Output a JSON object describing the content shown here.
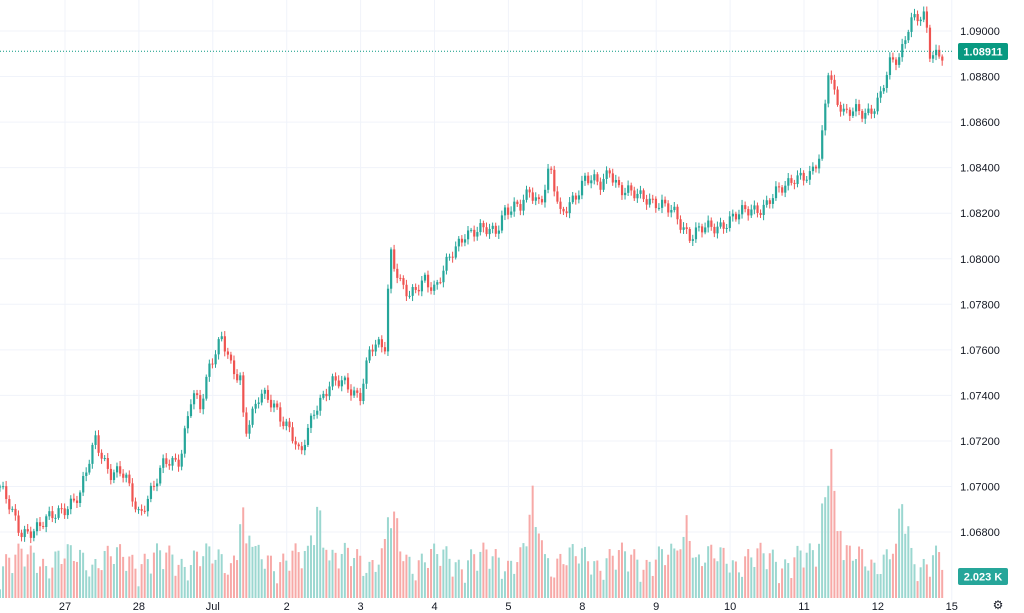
{
  "chart_data": {
    "type": "candlestick",
    "title": "",
    "timeframe_note": "hourly candles",
    "ylim": [
      1.0665,
      1.0915
    ],
    "y_ticks": [
      "1.09000",
      "1.08800",
      "1.08600",
      "1.08400",
      "1.08200",
      "1.08000",
      "1.07800",
      "1.07600",
      "1.07400",
      "1.07200",
      "1.07000",
      "1.06800"
    ],
    "x_ticks": [
      {
        "label": "27",
        "t": 0
      },
      {
        "label": "28",
        "t": 1
      },
      {
        "label": "Jul",
        "t": 2
      },
      {
        "label": "2",
        "t": 3
      },
      {
        "label": "3",
        "t": 4
      },
      {
        "label": "4",
        "t": 5
      },
      {
        "label": "5",
        "t": 6
      },
      {
        "label": "8",
        "t": 7
      },
      {
        "label": "9",
        "t": 8
      },
      {
        "label": "10",
        "t": 9
      },
      {
        "label": "11",
        "t": 10
      },
      {
        "label": "12",
        "t": 11
      },
      {
        "label": "15",
        "t": 12
      }
    ],
    "close_path": [
      [
        -0.88,
        1.07
      ],
      [
        -0.61,
        1.068
      ],
      [
        -0.34,
        1.0682
      ],
      [
        -0.07,
        1.069
      ],
      [
        0.2,
        1.0695
      ],
      [
        0.41,
        1.0722
      ],
      [
        0.61,
        1.0705
      ],
      [
        0.81,
        1.0705
      ],
      [
        1.01,
        1.0688
      ],
      [
        1.22,
        1.07
      ],
      [
        1.35,
        1.0712
      ],
      [
        1.56,
        1.0712
      ],
      [
        1.72,
        1.074
      ],
      [
        1.83,
        1.0735
      ],
      [
        1.96,
        1.0755
      ],
      [
        2.12,
        1.0765
      ],
      [
        2.26,
        1.075
      ],
      [
        2.37,
        1.0748
      ],
      [
        2.43,
        1.0725
      ],
      [
        2.64,
        1.074
      ],
      [
        2.84,
        1.0735
      ],
      [
        3.05,
        1.0725
      ],
      [
        3.18,
        1.0712
      ],
      [
        3.38,
        1.0735
      ],
      [
        3.59,
        1.0745
      ],
      [
        3.79,
        1.0745
      ],
      [
        3.99,
        1.074
      ],
      [
        4.13,
        1.076
      ],
      [
        4.33,
        1.0762
      ],
      [
        4.4,
        1.0805
      ],
      [
        4.53,
        1.079
      ],
      [
        4.67,
        1.0782
      ],
      [
        4.87,
        1.0792
      ],
      [
        5.01,
        1.0787
      ],
      [
        5.21,
        1.08
      ],
      [
        5.41,
        1.0812
      ],
      [
        5.62,
        1.0812
      ],
      [
        5.82,
        1.0812
      ],
      [
        5.95,
        1.0822
      ],
      [
        6.16,
        1.0822
      ],
      [
        6.29,
        1.083
      ],
      [
        6.43,
        1.0825
      ],
      [
        6.56,
        1.084
      ],
      [
        6.7,
        1.0818
      ],
      [
        6.83,
        1.0825
      ],
      [
        7.04,
        1.0835
      ],
      [
        7.24,
        1.0832
      ],
      [
        7.37,
        1.084
      ],
      [
        7.51,
        1.083
      ],
      [
        7.65,
        1.0828
      ],
      [
        7.85,
        1.0828
      ],
      [
        8.05,
        1.0823
      ],
      [
        8.25,
        1.082
      ],
      [
        8.46,
        1.081
      ],
      [
        8.66,
        1.0813
      ],
      [
        8.86,
        1.0815
      ],
      [
        9.07,
        1.0818
      ],
      [
        9.27,
        1.0822
      ],
      [
        9.47,
        1.0823
      ],
      [
        9.68,
        1.083
      ],
      [
        9.88,
        1.0837
      ],
      [
        10.08,
        1.0835
      ],
      [
        10.22,
        1.0845
      ],
      [
        10.33,
        1.0885
      ],
      [
        10.42,
        1.0872
      ],
      [
        10.55,
        1.0862
      ],
      [
        10.69,
        1.0865
      ],
      [
        10.89,
        1.0865
      ],
      [
        11.03,
        1.087
      ],
      [
        11.16,
        1.0885
      ],
      [
        11.3,
        1.089
      ],
      [
        11.43,
        1.0905
      ],
      [
        11.64,
        1.0905
      ],
      [
        11.7,
        1.089
      ],
      [
        11.91,
        1.0891
      ]
    ],
    "volume_peaks_k": [
      [
        2.42,
        9.0
      ],
      [
        3.42,
        9.5
      ],
      [
        4.43,
        10.0
      ],
      [
        6.33,
        10.5
      ],
      [
        8.4,
        8.0
      ],
      [
        10.35,
        15.0
      ],
      [
        11.33,
        10.0
      ]
    ],
    "current_price": "1.08911",
    "current_volume": "2.023 K",
    "colors": {
      "up": "#26a69a",
      "down": "#ef5350",
      "up_vol": "#9bd7d0",
      "down_vol": "#f7a9a7",
      "label": "#089981",
      "grid": "#f0f3fa"
    }
  },
  "ui": {
    "settings_icon": "gear-icon"
  }
}
